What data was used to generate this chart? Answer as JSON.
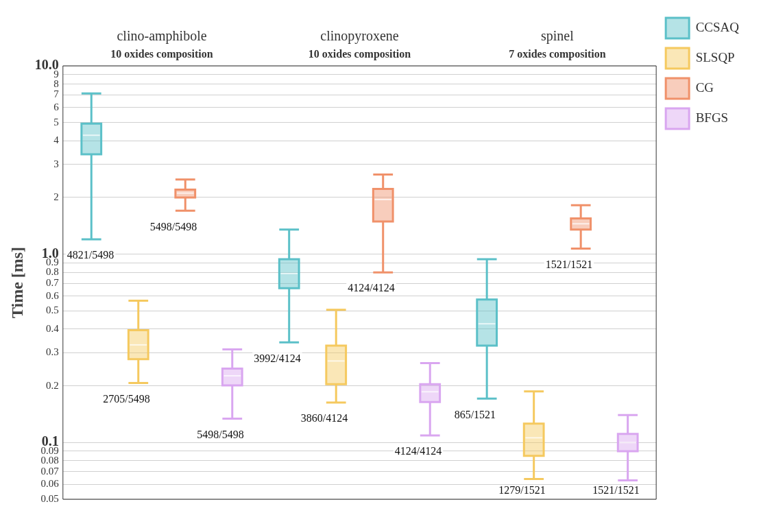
{
  "chart_data": {
    "type": "box",
    "ylabel": "Time [ms]",
    "categories": [
      "clino-amphibole",
      "clinopyroxene",
      "spinel"
    ],
    "log": "y",
    "grid": "y",
    "legend": "top right",
    "ylim": [
      0.05,
      10
    ],
    "yticks": [
      0.05,
      0.06,
      0.07,
      0.08,
      0.09,
      {
        "value": 0.1,
        "label": "0.1"
      },
      0.2,
      0.3,
      0.4,
      0.5,
      0.6,
      0.7,
      0.8,
      0.9,
      {
        "value": 1,
        "label": "1.0"
      },
      2,
      3,
      4,
      5,
      6,
      7,
      8,
      9,
      {
        "value": 10,
        "label": "10.0"
      }
    ],
    "series": [
      {
        "name": "CCSAQ",
        "color": "#5bc0c8",
        "boxes": [
          {
            "low": 1.2,
            "q1": 3.39,
            "median": 4.28,
            "q3": 4.93,
            "high": 7.13
          },
          {
            "low": 0.34,
            "q1": 0.66,
            "median": 0.79,
            "q3": 0.94,
            "high": 1.35
          },
          {
            "low": 0.171,
            "q1": 0.327,
            "median": 0.427,
            "q3": 0.575,
            "high": 0.94
          }
        ]
      },
      {
        "name": "SLSQP",
        "color": "#f5c95f",
        "boxes": [
          {
            "low": 0.207,
            "q1": 0.277,
            "median": 0.33,
            "q3": 0.395,
            "high": 0.566
          },
          {
            "low": 0.163,
            "q1": 0.204,
            "median": 0.271,
            "q3": 0.327,
            "high": 0.507
          },
          {
            "low": 0.064,
            "q1": 0.085,
            "median": 0.106,
            "q3": 0.126,
            "high": 0.187
          }
        ]
      },
      {
        "name": "CG",
        "color": "#f0916a",
        "boxes": [
          {
            "low": 1.7,
            "q1": 2.0,
            "median": 2.11,
            "q3": 2.2,
            "high": 2.49
          },
          {
            "low": 0.8,
            "q1": 1.49,
            "median": 1.95,
            "q3": 2.22,
            "high": 2.65
          },
          {
            "low": 1.07,
            "q1": 1.35,
            "median": 1.45,
            "q3": 1.55,
            "high": 1.82
          }
        ]
      },
      {
        "name": "BFGS",
        "color": "#d9a6f0",
        "boxes": [
          {
            "low": 0.134,
            "q1": 0.201,
            "median": 0.226,
            "q3": 0.247,
            "high": 0.312
          },
          {
            "low": 0.109,
            "q1": 0.164,
            "median": 0.186,
            "q3": 0.204,
            "high": 0.264
          },
          {
            "low": 0.063,
            "q1": 0.09,
            "median": 0.1,
            "q3": 0.111,
            "high": 0.14
          }
        ]
      }
    ],
    "annotations": [
      "10 oxides composition",
      "10 oxides composition",
      "7 oxides composition",
      "4821/5498",
      "2705/5498",
      "5498/5498",
      "5498/5498",
      "3992/4124",
      "3860/4124",
      "4124/4124",
      "4124/4124",
      "865/1521",
      "1279/1521",
      "1521/1521",
      "1521/1521"
    ]
  }
}
